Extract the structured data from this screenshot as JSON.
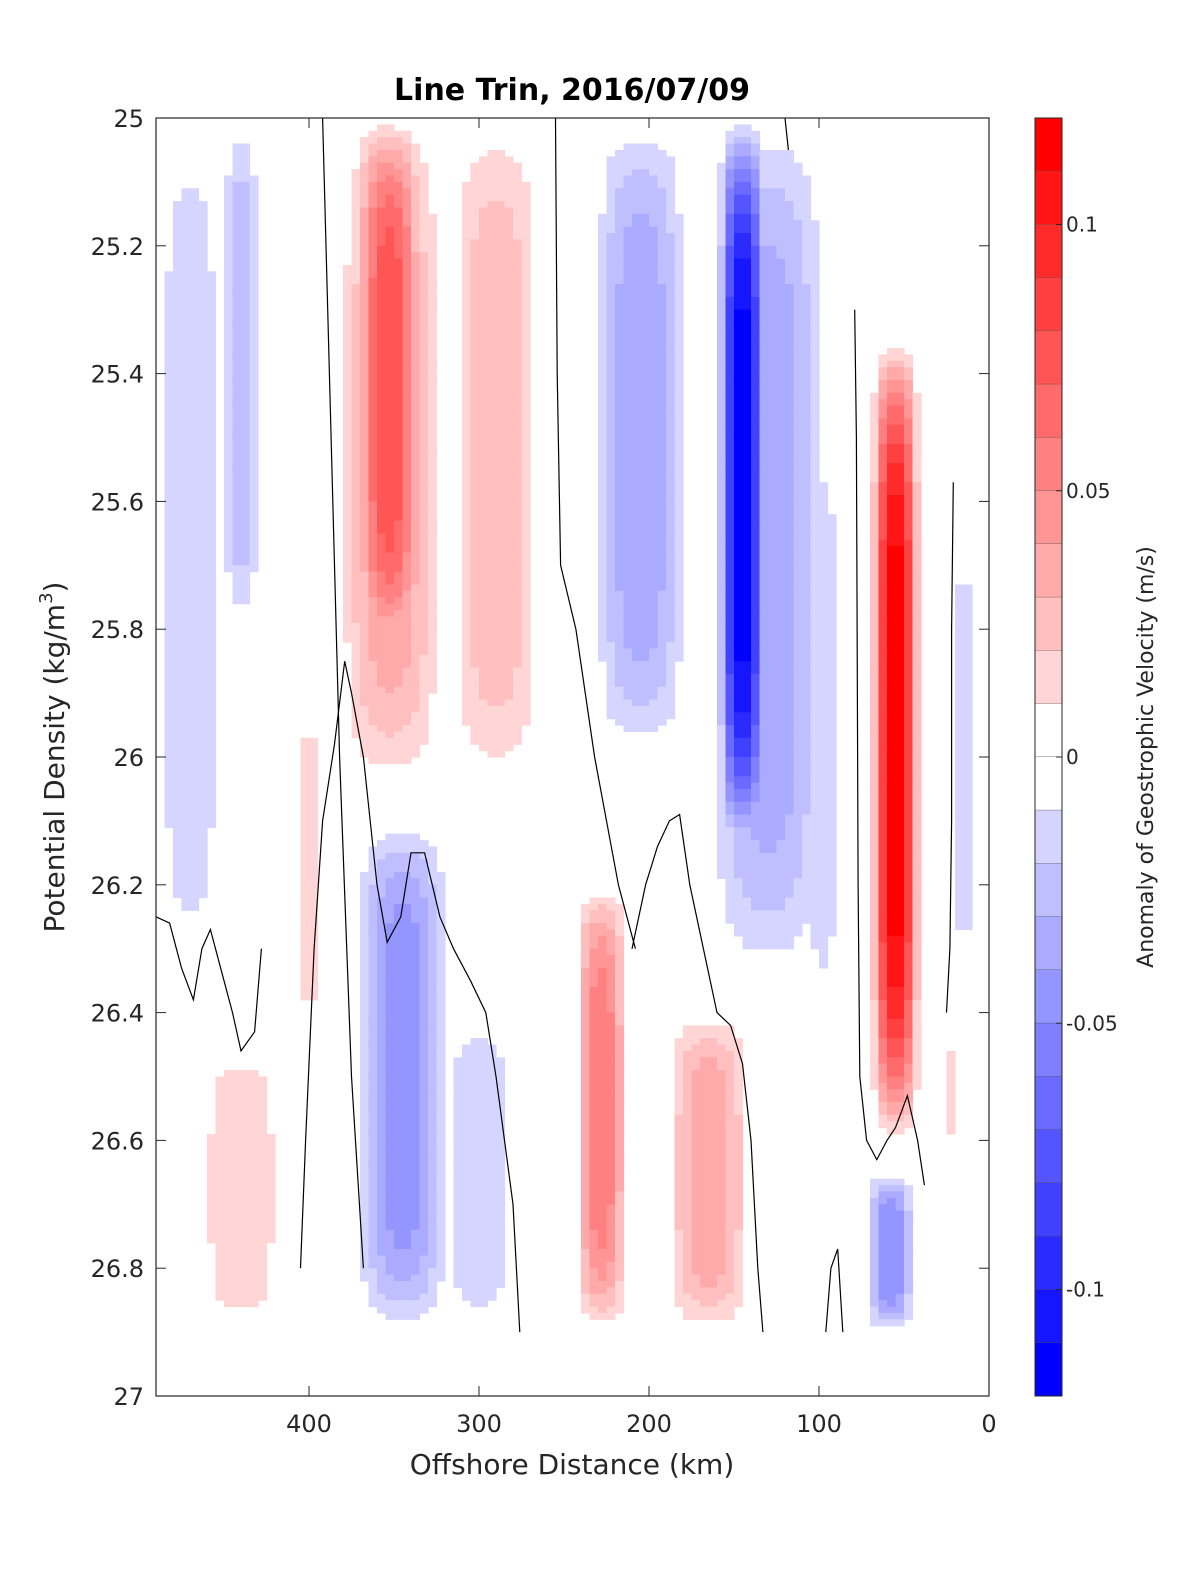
{
  "chart_data": {
    "type": "heatmap",
    "title": "Line Trin, 2016/07/09",
    "xlabel": "Offshore Distance (km)",
    "ylabel_main": "Potential Density (kg/m",
    "ylabel_sup": "3",
    "ylabel_end": ")",
    "xlim": [
      490,
      0
    ],
    "ylim": [
      25,
      27
    ],
    "y_reversed": true,
    "xticks": [
      400,
      300,
      200,
      100,
      0
    ],
    "xtick_labels": [
      "400",
      "300",
      "200",
      "100",
      "0"
    ],
    "yticks": [
      25,
      25.2,
      25.4,
      25.6,
      25.8,
      26,
      26.2,
      26.4,
      26.6,
      26.8,
      27
    ],
    "ytick_labels": [
      "25",
      "25.2",
      "25.4",
      "25.6",
      "25.8",
      "26",
      "26.2",
      "26.4",
      "26.6",
      "26.8",
      "27"
    ],
    "data_bottom_density": 26.9,
    "zero_contour_color": "#000000",
    "colorbar": {
      "title": "Anomaly of Geostrophic Velocity (m/s)",
      "range": [
        -0.12,
        0.12
      ],
      "step": 0.01,
      "tick_values": [
        0.1,
        0.05,
        0,
        -0.05,
        -0.1
      ],
      "tick_labels": [
        "0.1",
        "0.05",
        "0",
        "-0.05",
        "-0.1"
      ],
      "positive_color": "#ff0000",
      "negative_color": "#0000ff",
      "neutral_color": "#ffffff"
    },
    "features": [
      {
        "x_center": 470,
        "x_width": 40,
        "y_top": 25.0,
        "y_bottom": 26.35,
        "peak": -0.02
      },
      {
        "x_center": 440,
        "x_width": 22,
        "y_top": 25.0,
        "y_bottom": 25.8,
        "peak": -0.03
      },
      {
        "x_center": 440,
        "x_width": 50,
        "y_top": 26.45,
        "y_bottom": 26.9,
        "peak": 0.02
      },
      {
        "x_center": 353,
        "x_width": 40,
        "y_top": 25.0,
        "y_bottom": 25.85,
        "peak": 0.08
      },
      {
        "x_center": 352,
        "x_width": 60,
        "y_top": 25.0,
        "y_bottom": 26.05,
        "peak": 0.04
      },
      {
        "x_center": 290,
        "x_width": 55,
        "y_top": 25.0,
        "y_bottom": 26.05,
        "peak": 0.03
      },
      {
        "x_center": 400,
        "x_width": 10,
        "y_top": 25.9,
        "y_bottom": 26.45,
        "peak": 0.02
      },
      {
        "x_center": 205,
        "x_width": 55,
        "y_top": 25.0,
        "y_bottom": 26.0,
        "peak": -0.04
      },
      {
        "x_center": 145,
        "x_width": 28,
        "y_top": 25.0,
        "y_bottom": 26.15,
        "peak": -0.12
      },
      {
        "x_center": 130,
        "x_width": 70,
        "y_top": 25.0,
        "y_bottom": 26.35,
        "peak": -0.04
      },
      {
        "x_center": 98,
        "x_width": 20,
        "y_top": 25.5,
        "y_bottom": 26.4,
        "peak": -0.02
      },
      {
        "x_center": 55,
        "x_width": 28,
        "y_top": 25.35,
        "y_bottom": 26.6,
        "peak": 0.12
      },
      {
        "x_center": 15,
        "x_width": 10,
        "y_top": 25.65,
        "y_bottom": 26.35,
        "peak": -0.02
      },
      {
        "x_center": 345,
        "x_width": 55,
        "y_top": 26.1,
        "y_bottom": 26.9,
        "peak": -0.05
      },
      {
        "x_center": 300,
        "x_width": 45,
        "y_top": 26.4,
        "y_bottom": 26.9,
        "peak": -0.02
      },
      {
        "x_center": 228,
        "x_width": 30,
        "y_top": 26.2,
        "y_bottom": 26.9,
        "peak": 0.06
      },
      {
        "x_center": 165,
        "x_width": 50,
        "y_top": 26.4,
        "y_bottom": 26.9,
        "peak": 0.04
      },
      {
        "x_center": 58,
        "x_width": 28,
        "y_top": 26.65,
        "y_bottom": 26.9,
        "peak": -0.05
      },
      {
        "x_center": 22,
        "x_width": 5,
        "y_top": 26.45,
        "y_bottom": 26.6,
        "peak": 0.02
      }
    ],
    "zero_contours": [
      [
        [
          392,
          25.0
        ],
        [
          390,
          25.2
        ],
        [
          388,
          25.4
        ],
        [
          382,
          26.0
        ],
        [
          375,
          26.5
        ],
        [
          368,
          26.8
        ]
      ],
      [
        [
          255,
          25.0
        ],
        [
          254,
          25.4
        ],
        [
          252,
          25.7
        ],
        [
          243,
          25.8
        ],
        [
          232,
          26.0
        ],
        [
          218,
          26.2
        ],
        [
          208,
          26.3
        ]
      ],
      [
        [
          120,
          25.0
        ],
        [
          118,
          25.05
        ]
      ],
      [
        [
          79,
          25.3
        ],
        [
          78,
          25.5
        ],
        [
          77,
          26.2
        ],
        [
          76,
          26.5
        ],
        [
          72,
          26.6
        ],
        [
          66,
          26.63
        ],
        [
          60,
          26.6
        ],
        [
          55,
          26.58
        ],
        [
          48,
          26.53
        ],
        [
          42,
          26.6
        ],
        [
          38,
          26.67
        ]
      ],
      [
        [
          21,
          25.57
        ],
        [
          22,
          25.8
        ],
        [
          22,
          26.1
        ],
        [
          23,
          26.3
        ],
        [
          25,
          26.4
        ]
      ],
      [
        [
          490,
          26.25
        ],
        [
          482,
          26.26
        ],
        [
          475,
          26.33
        ],
        [
          468,
          26.38
        ],
        [
          463,
          26.3
        ],
        [
          458,
          26.27
        ],
        [
          455,
          26.3
        ],
        [
          450,
          26.35
        ],
        [
          445,
          26.4
        ],
        [
          440,
          26.46
        ],
        [
          432,
          26.43
        ],
        [
          428,
          26.3
        ]
      ],
      [
        [
          405,
          26.8
        ],
        [
          402,
          26.6
        ],
        [
          397,
          26.3
        ],
        [
          392,
          26.1
        ],
        [
          385,
          25.98
        ],
        [
          379,
          25.85
        ],
        [
          375,
          25.9
        ],
        [
          368,
          26.0
        ],
        [
          360,
          26.2
        ],
        [
          354,
          26.29
        ],
        [
          346,
          26.25
        ],
        [
          340,
          26.15
        ],
        [
          332,
          26.15
        ],
        [
          323,
          26.25
        ],
        [
          315,
          26.3
        ],
        [
          305,
          26.35
        ],
        [
          296,
          26.4
        ],
        [
          290,
          26.5
        ],
        [
          285,
          26.6
        ],
        [
          280,
          26.7
        ],
        [
          276,
          26.9
        ]
      ],
      [
        [
          210,
          26.3
        ],
        [
          202,
          26.2
        ],
        [
          195,
          26.14
        ],
        [
          188,
          26.1
        ],
        [
          182,
          26.09
        ],
        [
          176,
          26.2
        ],
        [
          168,
          26.3
        ],
        [
          160,
          26.4
        ],
        [
          152,
          26.42
        ],
        [
          145,
          26.48
        ],
        [
          140,
          26.6
        ],
        [
          136,
          26.8
        ],
        [
          133,
          26.9
        ]
      ],
      [
        [
          96,
          26.9
        ],
        [
          93,
          26.8
        ],
        [
          89,
          26.77
        ],
        [
          86,
          26.9
        ]
      ]
    ]
  }
}
